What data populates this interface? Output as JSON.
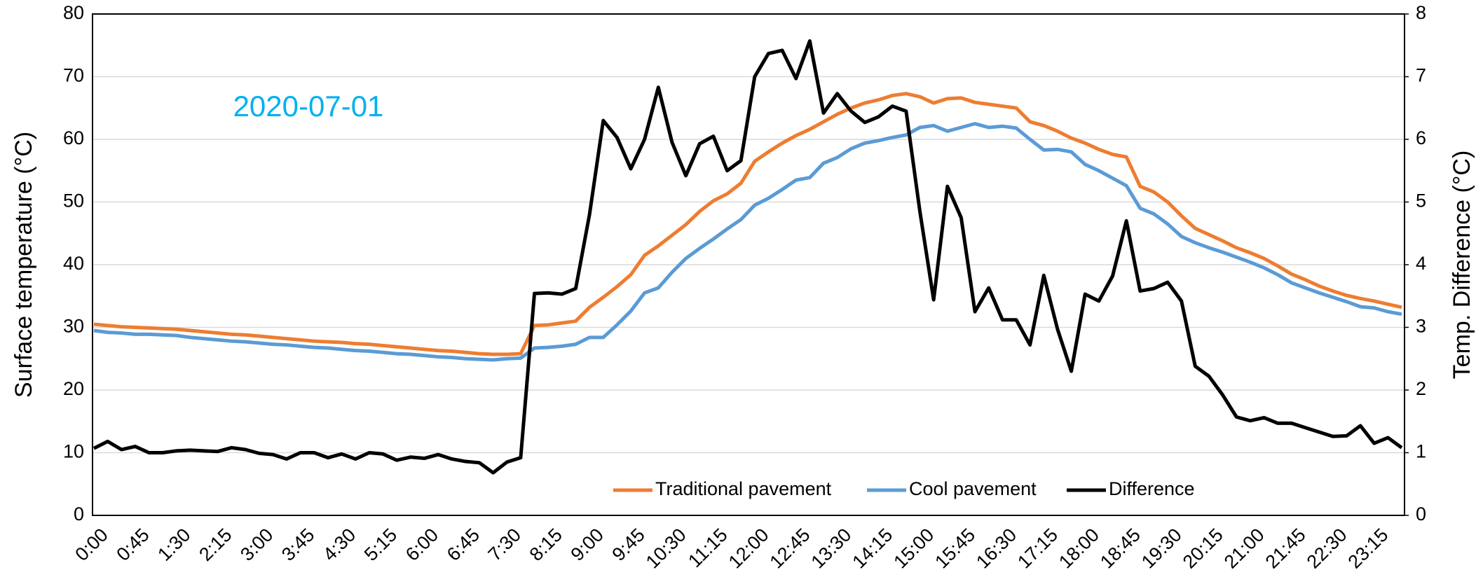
{
  "chart_data": {
    "type": "line",
    "annotation": "2020-07-01",
    "ylabel": "Surface temperature (°C)",
    "y2label": "Temp. Difference (°C)",
    "ylim": [
      0,
      80
    ],
    "yticks": [
      0,
      10,
      20,
      30,
      40,
      50,
      60,
      70,
      80
    ],
    "y2lim": [
      0,
      8
    ],
    "y2ticks": [
      0,
      1,
      2,
      3,
      4,
      5,
      6,
      7,
      8
    ],
    "grid": true,
    "legend": "bottom",
    "categories": [
      "0:00",
      null,
      null,
      "0:45",
      null,
      null,
      "1:30",
      null,
      null,
      "2:15",
      null,
      null,
      "3:00",
      null,
      null,
      "3:45",
      null,
      null,
      "4:30",
      null,
      null,
      "5:15",
      null,
      null,
      "6:00",
      null,
      null,
      "6:45",
      null,
      null,
      "7:30",
      null,
      null,
      "8:15",
      null,
      null,
      "9:00",
      null,
      null,
      "9:45",
      null,
      null,
      "10:30",
      null,
      null,
      "11:15",
      null,
      null,
      "12:00",
      null,
      null,
      "12:45",
      null,
      null,
      "13:30",
      null,
      null,
      "14:15",
      null,
      null,
      "15:00",
      null,
      null,
      "15:45",
      null,
      null,
      "16:30",
      null,
      null,
      "17:15",
      null,
      null,
      "18:00",
      null,
      null,
      "18:45",
      null,
      null,
      "19:30",
      null,
      null,
      "20:15",
      null,
      null,
      "21:00",
      null,
      null,
      "21:45",
      null,
      null,
      "22:30",
      null,
      null,
      "23:15",
      null,
      null
    ],
    "series": [
      {
        "name": "Traditional pavement",
        "color": "#ed7d31",
        "values": [
          30.5,
          30.3,
          30.1,
          30,
          29.9,
          29.8,
          29.7,
          29.5,
          29.3,
          29.1,
          28.9,
          28.8,
          28.6,
          28.4,
          28.2,
          28,
          27.8,
          27.7,
          27.6,
          27.4,
          27.3,
          27.1,
          26.9,
          26.7,
          26.5,
          26.3,
          26.2,
          26,
          25.8,
          25.7,
          25.7,
          25.8,
          30.3,
          30.4,
          30.7,
          31,
          33.2,
          34.8,
          36.5,
          38.4,
          41.5,
          43,
          44.7,
          46.4,
          48.5,
          50.2,
          51.3,
          53,
          56.5,
          58,
          59.4,
          60.6,
          61.6,
          62.8,
          64,
          65,
          65.8,
          66.3,
          67,
          67.3,
          66.8,
          65.8,
          66.5,
          66.6,
          65.9,
          65.6,
          65.3,
          65,
          62.8,
          62.2,
          61.3,
          60.2,
          59.4,
          58.4,
          57.6,
          57.2,
          52.5,
          51.6,
          50,
          47.8,
          45.8,
          44.8,
          43.8,
          42.7,
          41.9,
          41,
          39.8,
          38.5,
          37.6,
          36.6,
          35.8,
          35.1,
          34.6,
          34.2,
          33.7,
          33.2
        ]
      },
      {
        "name": "Cool pavement",
        "color": "#5b9bd5",
        "values": [
          29.5,
          29.2,
          29.1,
          28.9,
          28.9,
          28.8,
          28.7,
          28.4,
          28.2,
          28,
          27.8,
          27.7,
          27.5,
          27.3,
          27.2,
          27,
          26.8,
          26.7,
          26.5,
          26.3,
          26.2,
          26,
          25.8,
          25.7,
          25.5,
          25.3,
          25.2,
          25,
          24.9,
          24.8,
          25,
          25.1,
          26.7,
          26.8,
          27,
          27.3,
          28.4,
          28.4,
          30.4,
          32.6,
          35.5,
          36.3,
          38.8,
          41,
          42.6,
          44.1,
          45.7,
          47.2,
          49.5,
          50.6,
          52,
          53.5,
          53.9,
          56.2,
          57.1,
          58.5,
          59.4,
          59.8,
          60.3,
          60.7,
          61.9,
          62.2,
          61.3,
          61.9,
          62.5,
          61.9,
          62.1,
          61.8,
          60,
          58.3,
          58.4,
          58,
          56,
          55,
          53.8,
          52.6,
          49,
          48.1,
          46.5,
          44.5,
          43.5,
          42.7,
          42,
          41.2,
          40.4,
          39.5,
          38.4,
          37.1,
          36.3,
          35.5,
          34.8,
          34.1,
          33.3,
          33.1,
          32.5,
          32.1
        ]
      },
      {
        "name": "Difference",
        "color": "#000000",
        "axis": "y2",
        "values": [
          1.07,
          1.18,
          1.05,
          1.1,
          1,
          1,
          1.03,
          1.04,
          1.03,
          1.02,
          1.08,
          1.05,
          0.99,
          0.97,
          0.9,
          1,
          1,
          0.92,
          0.98,
          0.9,
          1,
          0.98,
          0.88,
          0.93,
          0.91,
          0.97,
          0.9,
          0.86,
          0.84,
          0.68,
          0.85,
          0.92,
          3.54,
          3.55,
          3.53,
          3.62,
          4.8,
          6.3,
          6.03,
          5.53,
          6,
          6.83,
          5.95,
          5.42,
          5.93,
          6.05,
          5.5,
          5.66,
          7,
          7.37,
          7.42,
          6.97,
          7.57,
          6.42,
          6.73,
          6.45,
          6.27,
          6.36,
          6.53,
          6.45,
          4.85,
          3.44,
          5.25,
          4.75,
          3.25,
          3.63,
          3.12,
          3.12,
          2.72,
          3.83,
          2.97,
          2.3,
          3.53,
          3.42,
          3.82,
          4.7,
          3.58,
          3.62,
          3.72,
          3.42,
          2.38,
          2.22,
          1.92,
          1.57,
          1.51,
          1.56,
          1.47,
          1.47,
          1.4,
          1.33,
          1.26,
          1.27,
          1.43,
          1.15,
          1.24,
          1.08
        ]
      }
    ]
  }
}
